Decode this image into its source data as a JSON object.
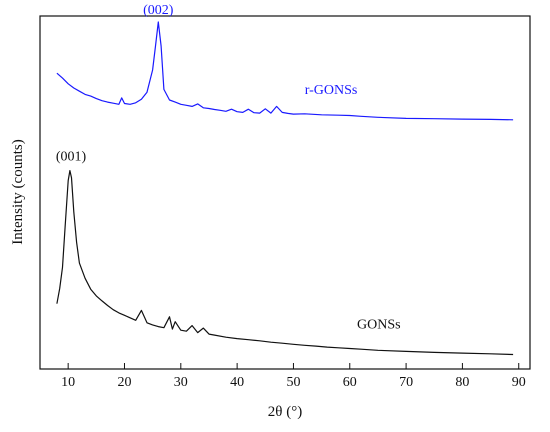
{
  "chart_data": {
    "type": "line",
    "title": "",
    "xlabel": "2θ (°)",
    "ylabel": "Intensity (counts)",
    "xlim": [
      5,
      92
    ],
    "ylim": [
      0,
      100
    ],
    "x_ticks": [
      10,
      20,
      30,
      40,
      50,
      60,
      70,
      80,
      90
    ],
    "y_ticks_shown": false,
    "grid": false,
    "legend": "none",
    "series": [
      {
        "name": "r-GONSs",
        "color": "#1a1aff",
        "x": [
          8,
          9,
          10,
          11,
          12,
          13,
          14,
          15,
          16,
          17,
          18,
          19,
          19.5,
          20,
          21,
          22,
          23,
          24,
          25,
          25.5,
          26,
          26.5,
          27,
          28,
          29,
          30,
          31,
          32,
          33,
          34,
          35,
          36,
          37,
          38,
          39,
          40,
          41,
          42,
          43,
          44,
          45,
          46,
          47,
          48,
          49,
          50,
          52,
          55,
          58,
          60,
          62,
          65,
          70,
          75,
          80,
          85,
          89
        ],
        "y": [
          83.8,
          82.4,
          80.8,
          79.6,
          78.7,
          77.8,
          77.3,
          76.6,
          76.0,
          75.6,
          75.3,
          75.0,
          76.8,
          75.2,
          75.0,
          75.4,
          76.4,
          78.4,
          84.7,
          91.5,
          98.3,
          91.5,
          79.2,
          76.2,
          75.6,
          75.0,
          74.7,
          74.4,
          75.1,
          74.0,
          73.8,
          73.5,
          73.3,
          73.0,
          73.6,
          72.9,
          72.7,
          73.6,
          72.6,
          72.5,
          73.7,
          72.5,
          74.4,
          72.7,
          72.4,
          72.2,
          72.3,
          72.0,
          71.9,
          71.8,
          71.6,
          71.3,
          71.0,
          70.9,
          70.8,
          70.7,
          70.6
        ],
        "peak_label": "(002)"
      },
      {
        "name": "GONSs",
        "color": "#111111",
        "x": [
          8,
          8.5,
          9,
          9.5,
          10,
          10.3,
          10.6,
          11,
          11.5,
          12,
          13,
          14,
          15,
          16,
          17,
          18,
          19,
          20,
          21,
          22,
          23,
          24,
          25,
          26,
          27,
          28,
          28.5,
          29,
          30,
          31,
          32,
          33,
          34,
          35,
          36,
          38,
          40,
          42,
          44,
          46,
          48,
          50,
          52,
          54,
          56,
          58,
          60,
          62,
          65,
          70,
          75,
          80,
          85,
          89
        ],
        "y": [
          18.5,
          22.8,
          28.8,
          41.1,
          53.4,
          56.2,
          54.2,
          44.5,
          35.9,
          30.0,
          25.7,
          22.6,
          20.7,
          19.3,
          18.0,
          16.8,
          15.9,
          15.2,
          14.5,
          13.8,
          16.6,
          13.1,
          12.5,
          12.0,
          11.7,
          14.8,
          11.3,
          13.4,
          11.0,
          10.7,
          12.3,
          10.3,
          11.6,
          9.9,
          9.6,
          9.0,
          8.6,
          8.3,
          8.0,
          7.6,
          7.3,
          7.0,
          6.7,
          6.5,
          6.2,
          6.0,
          5.8,
          5.6,
          5.3,
          5.0,
          4.7,
          4.5,
          4.3,
          4.1
        ],
        "peak_label": "(001)"
      }
    ],
    "annotations": [
      {
        "text": "(002)",
        "x": 26,
        "y": 98.3,
        "color": "#1a1aff"
      },
      {
        "text": "(001)",
        "x": 10.5,
        "y": 56.2,
        "color": "#111111"
      },
      {
        "text": "r-GONSs",
        "x": 52,
        "y": 72.2,
        "color": "#1a1aff"
      },
      {
        "text": "GONSs",
        "x": 62,
        "y": 5.8,
        "color": "#111111"
      }
    ]
  }
}
